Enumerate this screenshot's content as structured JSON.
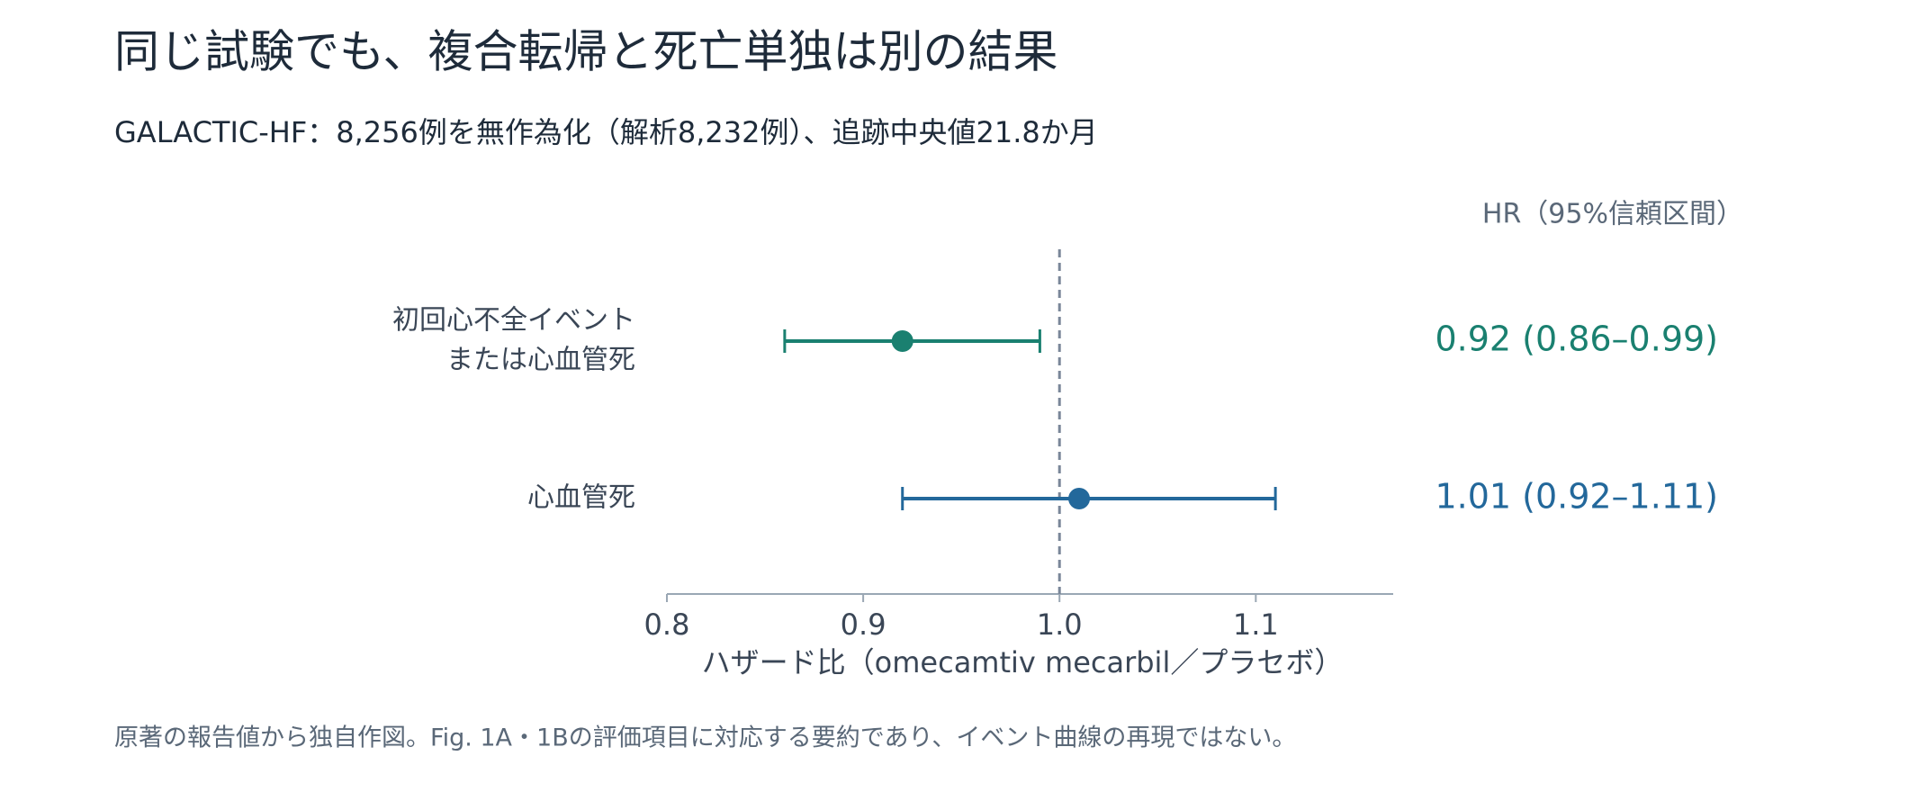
{
  "chart_data": {
    "type": "forest",
    "title": "同じ試験でも、複合転帰と死亡単独は別の結果",
    "subtitle": "GALACTIC-HF：8,256例を無作為化（解析8,232例）、追跡中央値21.8か月",
    "column_header": "HR（95%信頼区間）",
    "categories": [
      [
        "初回心不全イベント",
        "または心血管死"
      ],
      [
        "心血管死"
      ]
    ],
    "values": [
      0.92,
      1.01
    ],
    "lower": [
      0.86,
      0.92
    ],
    "upper": [
      0.99,
      1.11
    ],
    "value_labels": [
      "0.92 (0.86–0.99)",
      "1.01 (0.92–1.11)"
    ],
    "colors": [
      "#1a8070",
      "#23689b"
    ],
    "reference_line": 1,
    "xlim": [
      0.8,
      1.17
    ],
    "xticks": [
      0.8,
      0.9,
      {
        "value": 1,
        "label": "1.0"
      },
      1.1
    ],
    "x_label": "ハザード比（omecamtiv mecarbil／プラセボ）",
    "note": "原著の報告値から独自作図。Fig. 1A・1Bの評価項目に対応する要約であり、イベント曲線の再現ではない。"
  }
}
